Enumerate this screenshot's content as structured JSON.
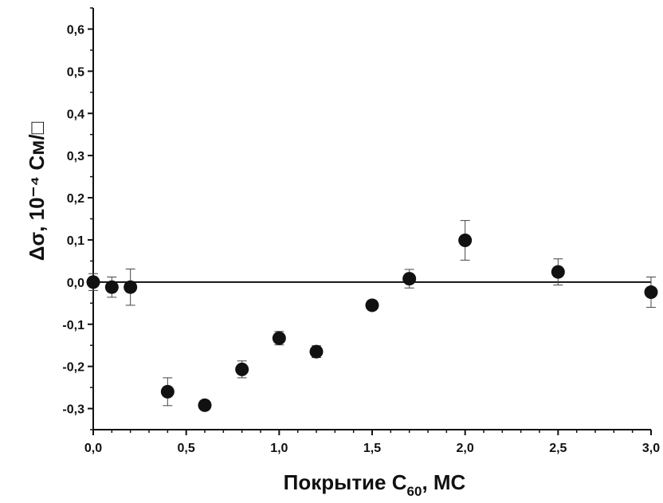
{
  "chart_data": {
    "type": "scatter",
    "title": "",
    "xlabel": {
      "main": "Покрытие C",
      "sub": "60",
      "tail": ", МС"
    },
    "ylabel": "Δσ, 10⁻⁴ См/□",
    "xlim": [
      0,
      3.0
    ],
    "ylim": [
      -0.35,
      0.65
    ],
    "x_ticks": [
      0,
      0.5,
      1.0,
      1.5,
      2.0,
      2.5,
      3.0
    ],
    "x_tick_labels": [
      "0,0",
      "0,5",
      "1,0",
      "1,5",
      "2,0",
      "2,5",
      "3,0"
    ],
    "y_ticks": [
      -0.3,
      -0.2,
      -0.1,
      0.0,
      0.1,
      0.2,
      0.3,
      0.4,
      0.5,
      0.6
    ],
    "y_tick_labels": [
      "-0,3",
      "-0,2",
      "-0,1",
      "0,0",
      "0,1",
      "0,2",
      "0,3",
      "0,4",
      "0,5",
      "0,6"
    ],
    "reference_line_y": 0.0,
    "grid": false,
    "legend": "none",
    "series": [
      {
        "marker_color": "#111111",
        "points": [
          {
            "x": 0.0,
            "y": 0.0,
            "err": 0.02
          },
          {
            "x": 0.1,
            "y": -0.012,
            "err": 0.024
          },
          {
            "x": 0.2,
            "y": -0.012,
            "err": 0.043
          },
          {
            "x": 0.4,
            "y": -0.26,
            "err": 0.033
          },
          {
            "x": 0.6,
            "y": -0.292,
            "err": 0.0
          },
          {
            "x": 0.8,
            "y": -0.207,
            "err": 0.02
          },
          {
            "x": 1.0,
            "y": -0.133,
            "err": 0.016
          },
          {
            "x": 1.2,
            "y": -0.165,
            "err": 0.014
          },
          {
            "x": 1.5,
            "y": -0.055,
            "err": 0.0
          },
          {
            "x": 1.7,
            "y": 0.008,
            "err": 0.022
          },
          {
            "x": 2.0,
            "y": 0.099,
            "err": 0.047
          },
          {
            "x": 2.5,
            "y": 0.024,
            "err": 0.031
          },
          {
            "x": 3.0,
            "y": -0.024,
            "err": 0.036
          }
        ]
      }
    ]
  }
}
